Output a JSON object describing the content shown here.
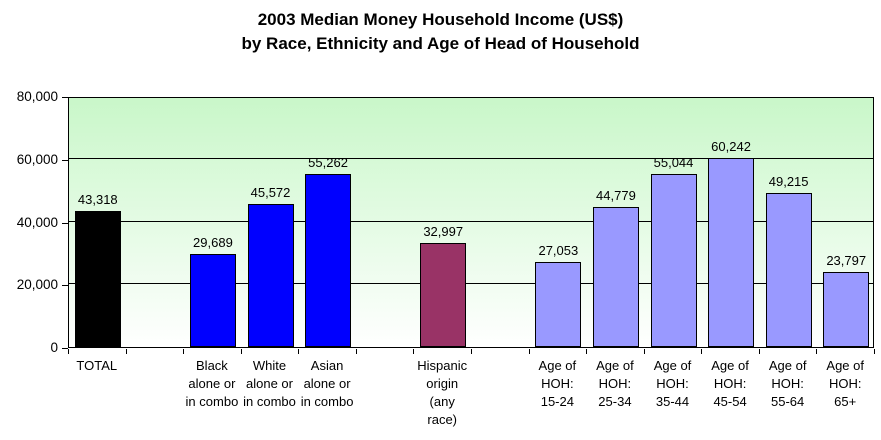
{
  "chart_data": {
    "type": "bar",
    "title_lines": [
      "2003 Median Money Household Income (US$)",
      "by Race, Ethnicity and Age of Head of Household"
    ],
    "ylim": [
      0,
      80000
    ],
    "yticks": [
      {
        "value": 0,
        "label": "0"
      },
      {
        "value": 20000,
        "label": "20,000"
      },
      {
        "value": 40000,
        "label": "40,000"
      },
      {
        "value": 60000,
        "label": "60,000"
      },
      {
        "value": 80000,
        "label": "80,000"
      }
    ],
    "grid": "horizontal",
    "legend": "none",
    "num_slots": 14,
    "plot_bg_gradient_top": "#c9f7c9",
    "plot_bg_gradient_bottom": "#ffffff",
    "bars": [
      {
        "slot": 0,
        "label_lines": [
          "TOTAL"
        ],
        "value": 43318,
        "value_label": "43,318",
        "color": "#000000"
      },
      {
        "slot": 2,
        "label_lines": [
          "Black",
          "alone or",
          "in combo"
        ],
        "value": 29689,
        "value_label": "29,689",
        "color": "#0000ff"
      },
      {
        "slot": 3,
        "label_lines": [
          "White",
          "alone or",
          "in combo"
        ],
        "value": 45572,
        "value_label": "45,572",
        "color": "#0000ff"
      },
      {
        "slot": 4,
        "label_lines": [
          "Asian",
          "alone or",
          "in combo"
        ],
        "value": 55262,
        "value_label": "55,262",
        "color": "#0000ff"
      },
      {
        "slot": 6,
        "label_lines": [
          "Hispanic",
          "origin",
          "(any",
          "race)"
        ],
        "value": 32997,
        "value_label": "32,997",
        "color": "#993366"
      },
      {
        "slot": 8,
        "label_lines": [
          "Age of",
          "HOH:",
          "15-24"
        ],
        "value": 27053,
        "value_label": "27,053",
        "color": "#9999ff"
      },
      {
        "slot": 9,
        "label_lines": [
          "Age of",
          "HOH:",
          "25-34"
        ],
        "value": 44779,
        "value_label": "44,779",
        "color": "#9999ff"
      },
      {
        "slot": 10,
        "label_lines": [
          "Age of",
          "HOH:",
          "35-44"
        ],
        "value": 55044,
        "value_label": "55,044",
        "color": "#9999ff"
      },
      {
        "slot": 11,
        "label_lines": [
          "Age of",
          "HOH:",
          "45-54"
        ],
        "value": 60242,
        "value_label": "60,242",
        "color": "#9999ff"
      },
      {
        "slot": 12,
        "label_lines": [
          "Age of",
          "HOH:",
          "55-64"
        ],
        "value": 49215,
        "value_label": "49,215",
        "color": "#9999ff"
      },
      {
        "slot": 13,
        "label_lines": [
          "Age of",
          "HOH:",
          "65+"
        ],
        "value": 23797,
        "value_label": "23,797",
        "color": "#9999ff"
      }
    ]
  }
}
